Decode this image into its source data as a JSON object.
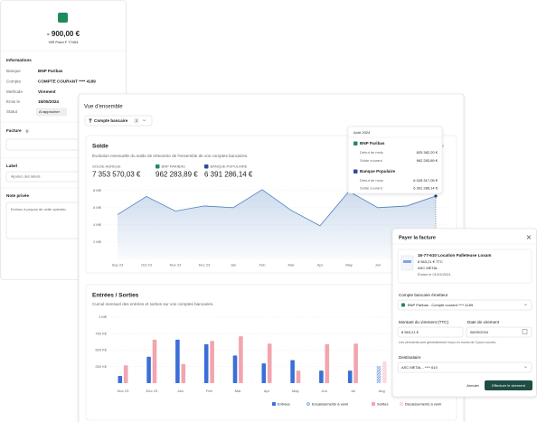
{
  "transaction_panel": {
    "amount": "- 900,00 €",
    "reference": "VIR Point F 77404",
    "section_title": "Informations",
    "fields": [
      {
        "label": "Banque",
        "value": "BNP Paribas"
      },
      {
        "label": "Compte",
        "value": "COMPTE COURANT **** 4189"
      },
      {
        "label": "Methode",
        "value": "Virement"
      },
      {
        "label": "Émis le",
        "value": "15/05/2024"
      }
    ],
    "status_label": "Statut",
    "status": "A rapprocher",
    "invoice_label": "Facture",
    "invoice_count": 0,
    "associate_button": "Associer",
    "label_title": "Label",
    "label_placeholder": "Ajoutez des labels",
    "note_title": "Note privée",
    "note_placeholder": "Ecrivez à propos de cette opératio"
  },
  "overview": {
    "title": "Vue d'ensemble",
    "filter": {
      "label": "Compte bancaire",
      "count": 2
    },
    "solde": {
      "title": "Solde",
      "subtitle": "Évolution mensuelle du solde de trésorerie de l'ensemble de vos comptes bancaires.",
      "stats": [
        {
          "label": "SOLDE AGREGE",
          "value": "7 353 570,03 €"
        },
        {
          "label": "BNP PARIBAS",
          "value": "962 283,89 €"
        },
        {
          "label": "BANQUE POPULAIRE",
          "value": "6 391 286,14 €"
        }
      ],
      "chart": {
        "type": "line",
        "categories": [
          "Sep 23",
          "Oct 23",
          "Nov 23",
          "Dec 23",
          "Jan",
          "Feb",
          "Mar",
          "Apr",
          "May",
          "Jun",
          "Jul",
          "Aug"
        ],
        "values": [
          5.2,
          7.3,
          5.6,
          6.2,
          6.0,
          8.1,
          5.7,
          3.9,
          7.9,
          6.0,
          6.2,
          7.35
        ],
        "color": "#4a7fc1",
        "ylim": [
          0,
          8.5
        ],
        "yticks": [
          {
            "value": 2,
            "label": "2 M€"
          },
          {
            "value": 4,
            "label": "4 M€"
          },
          {
            "value": 6,
            "label": "6 M€"
          },
          {
            "value": 8,
            "label": "8 M€"
          }
        ],
        "grid": true
      },
      "tooltip": {
        "title": "Août 2024",
        "accounts": [
          {
            "name": "BNP Paribas",
            "rows": [
              {
                "label": "Début de mois",
                "value": "825 382,20 €"
              },
              {
                "label": "Solde courant",
                "value": "962 283,89 €"
              }
            ]
          },
          {
            "name": "Banque Populaire",
            "rows": [
              {
                "label": "Début de mois",
                "value": "6 028 317,05 €"
              },
              {
                "label": "Solde courant",
                "value": "6 391 286,14 €"
              }
            ]
          }
        ]
      }
    },
    "flows": {
      "title": "Entrées / Sorties",
      "subtitle": "Cumul mensuel des entrées et sorties sur vos comptes bancaires.",
      "chart": {
        "type": "bar",
        "categories": [
          "Nov 23",
          "Dec 23",
          "Jan",
          "Feb",
          "Mar",
          "Apr",
          "May",
          "Jun",
          "Jul",
          "Aug"
        ],
        "series": [
          {
            "name": "Entrées",
            "color": "#3b6fd8",
            "values": [
              110,
              400,
              660,
              590,
              420,
              300,
              350,
              190,
              190,
              null
            ]
          },
          {
            "name": "Encaissements à venir",
            "color": "#3b6fd8",
            "values": [
              null,
              null,
              null,
              null,
              null,
              null,
              null,
              null,
              null,
              260
            ]
          },
          {
            "name": "Sorties",
            "color": "#f2a5ae",
            "values": [
              270,
              660,
              290,
              640,
              710,
              600,
              190,
              590,
              600,
              null
            ]
          },
          {
            "name": "Décaissements à venir",
            "color": "#f2a5ae",
            "values": [
              null,
              null,
              null,
              null,
              null,
              null,
              null,
              null,
              null,
              330
            ]
          }
        ],
        "ylim": [
          0,
          1000
        ],
        "yticks": [
          {
            "value": 250,
            "label": "250 K€"
          },
          {
            "value": 500,
            "label": "500 K€"
          },
          {
            "value": 750,
            "label": "750 K€"
          },
          {
            "value": 1000,
            "label": "1 M€"
          }
        ],
        "grid": true
      }
    }
  },
  "payment_panel": {
    "title": "Payer la facture",
    "invoice": {
      "number": "16-77-610 Location Palleteuse Loxam",
      "amount": "8 563,21 € TTC",
      "supplier": "ASC METAL",
      "issued": "Émise le 01/03/2024"
    },
    "account_label": "Compte bancaire émetteur",
    "account_value": "BNP Paribas - Compte courant **** 4189",
    "amount_label": "Montant du virement (TTC)",
    "amount_value": "8 563,21 €",
    "date_label": "Date de virement",
    "date_value": "06/09/2024",
    "note": "Les virements sont généralement reçus en moins de 3 jours ouvrés.",
    "recipient_label": "Destinataire",
    "recipient_value": "ASC METAL - **** 610",
    "cancel_button": "Annuler",
    "submit_button": "Effectuer le virement"
  }
}
